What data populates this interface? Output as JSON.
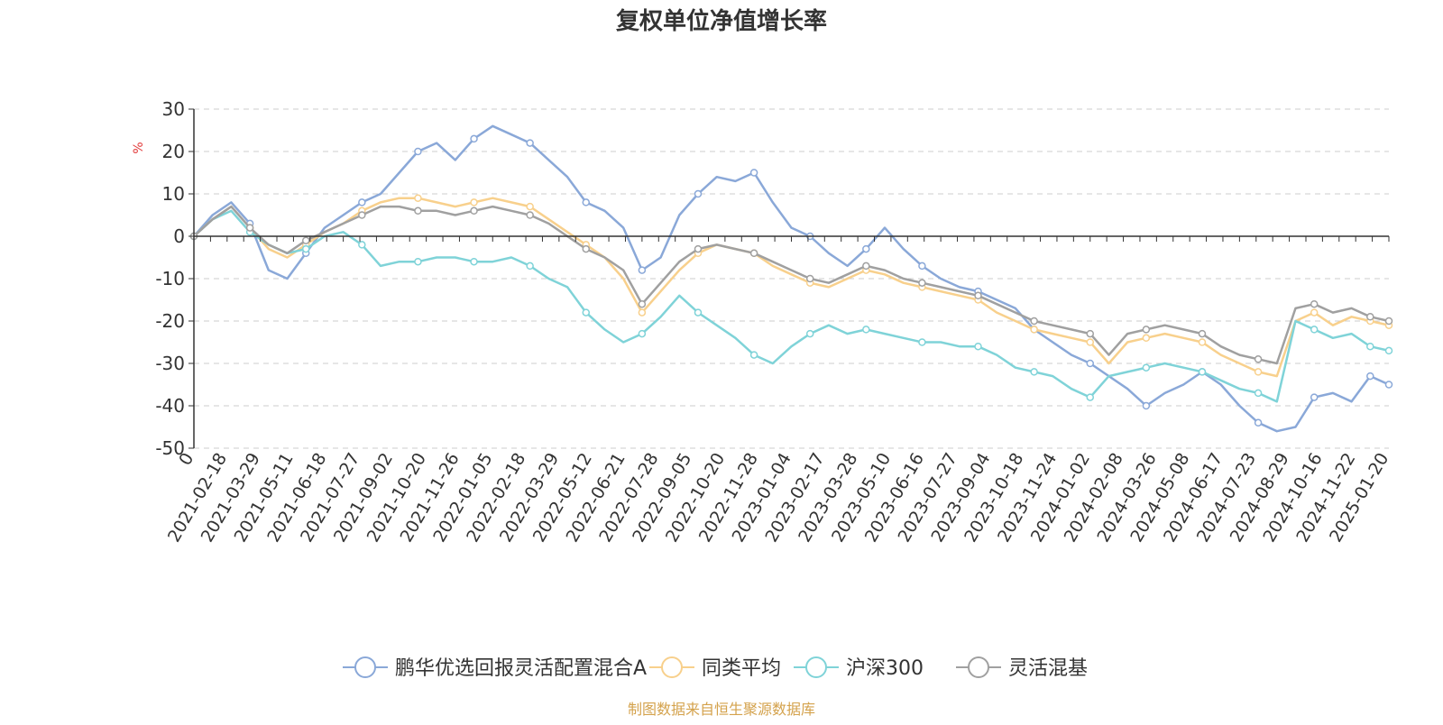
{
  "chart_data": {
    "type": "line",
    "title": "复权单位净值增长率",
    "ylabel": "%",
    "ylim": [
      -50,
      30
    ],
    "yticks": [
      30,
      20,
      10,
      0,
      -10,
      -20,
      -30,
      -40,
      -50
    ],
    "grid": true,
    "legend_position": "bottom-center",
    "source": "制图数据来自恒生聚源数据库",
    "x_tick_labels": [
      "0",
      "2021-02-18",
      "2021-03-29",
      "2021-05-11",
      "2021-06-18",
      "2021-07-27",
      "2021-09-02",
      "2021-10-20",
      "2021-11-26",
      "2022-01-05",
      "2022-02-18",
      "2022-03-29",
      "2022-05-12",
      "2022-06-21",
      "2022-07-28",
      "2022-09-05",
      "2022-10-20",
      "2022-11-28",
      "2023-01-04",
      "2023-02-17",
      "2023-03-28",
      "2023-05-10",
      "2023-06-16",
      "2023-07-27",
      "2023-09-04",
      "2023-10-18",
      "2023-11-24",
      "2024-01-02",
      "2024-02-08",
      "2024-03-26",
      "2024-05-08",
      "2024-06-17",
      "2024-07-23",
      "2024-08-29",
      "2024-10-16",
      "2024-11-22",
      "2025-01-20"
    ],
    "series": [
      {
        "name": "鹏华优选回报灵活配置混合A",
        "color": "#8aa8d8",
        "values": [
          0,
          5,
          8,
          3,
          -8,
          -10,
          -4,
          2,
          5,
          8,
          10,
          15,
          20,
          22,
          18,
          23,
          26,
          24,
          22,
          18,
          14,
          8,
          6,
          2,
          -8,
          -5,
          5,
          10,
          14,
          13,
          15,
          8,
          2,
          0,
          -4,
          -7,
          -3,
          2,
          -3,
          -7,
          -10,
          -12,
          -13,
          -15,
          -17,
          -22,
          -25,
          -28,
          -30,
          -33,
          -36,
          -40,
          -37,
          -35,
          -32,
          -35,
          -40,
          -44,
          -46,
          -45,
          -38,
          -37,
          -39,
          -33,
          -35
        ]
      },
      {
        "name": "同类平均",
        "color": "#f8d08c",
        "values": [
          0,
          4,
          7,
          2,
          -3,
          -5,
          -2,
          1,
          3,
          6,
          8,
          9,
          9,
          8,
          7,
          8,
          9,
          8,
          7,
          4,
          1,
          -2,
          -5,
          -10,
          -18,
          -13,
          -8,
          -4,
          -2,
          -3,
          -4,
          -7,
          -9,
          -11,
          -12,
          -10,
          -8,
          -9,
          -11,
          -12,
          -13,
          -14,
          -15,
          -18,
          -20,
          -22,
          -23,
          -24,
          -25,
          -30,
          -25,
          -24,
          -23,
          -24,
          -25,
          -28,
          -30,
          -32,
          -33,
          -20,
          -18,
          -21,
          -19,
          -20,
          -21
        ]
      },
      {
        "name": "沪深300",
        "color": "#7fd3d8",
        "values": [
          0,
          4,
          6,
          1,
          -2,
          -4,
          -3,
          0,
          1,
          -2,
          -7,
          -6,
          -6,
          -5,
          -5,
          -6,
          -6,
          -5,
          -7,
          -10,
          -12,
          -18,
          -22,
          -25,
          -23,
          -19,
          -14,
          -18,
          -21,
          -24,
          -28,
          -30,
          -26,
          -23,
          -21,
          -23,
          -22,
          -23,
          -24,
          -25,
          -25,
          -26,
          -26,
          -28,
          -31,
          -32,
          -33,
          -36,
          -38,
          -33,
          -32,
          -31,
          -30,
          -31,
          -32,
          -34,
          -36,
          -37,
          -39,
          -20,
          -22,
          -24,
          -23,
          -26,
          -27
        ]
      },
      {
        "name": "灵活混基",
        "color": "#a0a0a0",
        "values": [
          0,
          4,
          7,
          2,
          -2,
          -4,
          -1,
          1,
          3,
          5,
          7,
          7,
          6,
          6,
          5,
          6,
          7,
          6,
          5,
          3,
          0,
          -3,
          -5,
          -8,
          -16,
          -11,
          -6,
          -3,
          -2,
          -3,
          -4,
          -6,
          -8,
          -10,
          -11,
          -9,
          -7,
          -8,
          -10,
          -11,
          -12,
          -13,
          -14,
          -16,
          -18,
          -20,
          -21,
          -22,
          -23,
          -28,
          -23,
          -22,
          -21,
          -22,
          -23,
          -26,
          -28,
          -29,
          -30,
          -17,
          -16,
          -18,
          -17,
          -19,
          -20
        ]
      }
    ]
  }
}
